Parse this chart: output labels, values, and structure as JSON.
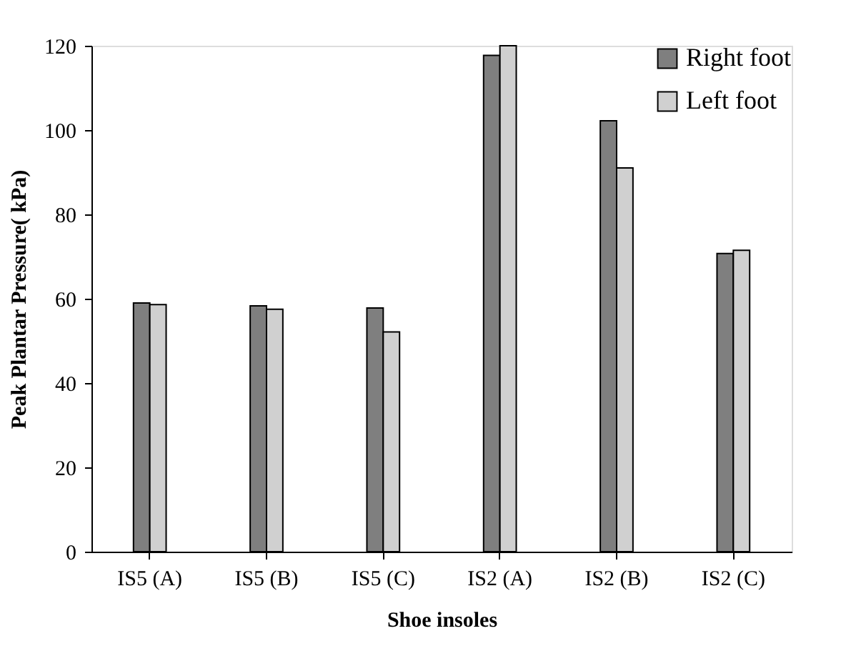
{
  "chart_data": {
    "type": "bar",
    "xlabel": "Shoe insoles",
    "ylabel": "Peak Plantar Pressure( kPa)",
    "categories": [
      "IS5 (A)",
      "IS5 (B)",
      "IS5 (C)",
      "IS2 (A)",
      "IS2 (B)",
      "IS2 (C)"
    ],
    "series": [
      {
        "name": "Right foot",
        "color": "#7f7f7f",
        "values": [
          59,
          58.3,
          57.8,
          117.7,
          102.2,
          70.7
        ]
      },
      {
        "name": "Left foot",
        "color": "#d0d0d0",
        "values": [
          58.6,
          57.5,
          52.1,
          120,
          91,
          71.5
        ]
      }
    ],
    "ylim": [
      0,
      120
    ],
    "yticks": [
      0,
      20,
      40,
      60,
      80,
      100,
      120
    ],
    "grid": false,
    "legend": "top right"
  }
}
